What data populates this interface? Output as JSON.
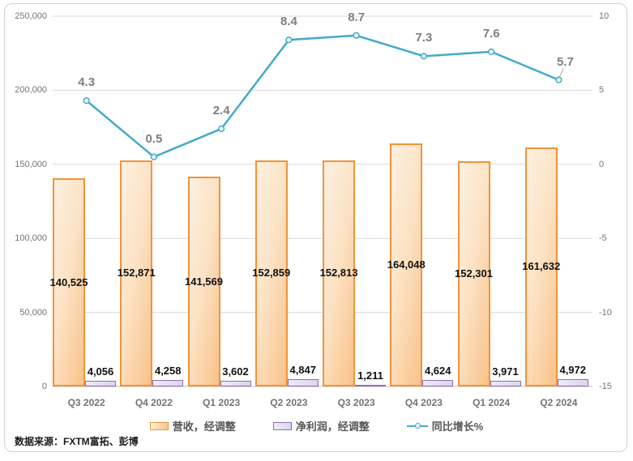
{
  "source_note": "数据来源：FXTM富拓、彭博",
  "colors": {
    "revenue_border": "#F0943B",
    "revenue_fill_light": "#FDF0E0",
    "revenue_fill_dark": "#F9C289",
    "profit_border": "#8F6FB4",
    "profit_fill_light": "#F0EBF7",
    "profit_fill_dark": "#DDD3EC",
    "line": "#42ABC9",
    "grid": "#D9D9D9",
    "zero_axis": "#BFBFBF",
    "axis_text": "#737373",
    "line_label_text": "#7F7F7F",
    "bar_label_text": "#111111",
    "legend_text": "#555555",
    "frame_border": "#D2D2D2"
  },
  "chart_data": {
    "type": "combo bar+line",
    "categories": [
      "Q3 2022",
      "Q4 2022",
      "Q1 2023",
      "Q2 2023",
      "Q3 2023",
      "Q4 2023",
      "Q1 2024",
      "Q2 2024"
    ],
    "series": [
      {
        "name": "营收，经调整",
        "type": "bar",
        "axis": "left",
        "values": [
          140525,
          152871,
          141569,
          152859,
          152813,
          164048,
          152301,
          161632
        ],
        "labels": [
          "140,525",
          "152,871",
          "141,569",
          "152,859",
          "152,813",
          "164,048",
          "152,301",
          "161,632"
        ]
      },
      {
        "name": "净利润，经调整",
        "type": "bar",
        "axis": "left",
        "values": [
          4056,
          4258,
          3602,
          4847,
          1211,
          4624,
          3971,
          4972
        ],
        "labels": [
          "4,056",
          "4,258",
          "3,602",
          "4,847",
          "1,211",
          "4,624",
          "3,971",
          "4,972"
        ]
      },
      {
        "name": "同比增长%",
        "type": "line",
        "axis": "right",
        "values": [
          4.3,
          0.5,
          2.4,
          8.4,
          8.7,
          7.3,
          7.6,
          5.7
        ],
        "labels": [
          "4.3",
          "0.5",
          "2.4",
          "8.4",
          "8.7",
          "7.3",
          "7.6",
          "5.7"
        ]
      }
    ],
    "left_axis": {
      "min": 0,
      "max": 250000,
      "step": 50000,
      "tick_labels": [
        "0",
        "50,000",
        "100,000",
        "150,000",
        "200,000",
        "250,000"
      ]
    },
    "right_axis": {
      "min": -15,
      "max": 10,
      "step": 5,
      "tick_labels": [
        "-15",
        "-10",
        "-5",
        "0",
        "5",
        "10"
      ]
    },
    "grid": true,
    "legend_position": "bottom"
  }
}
